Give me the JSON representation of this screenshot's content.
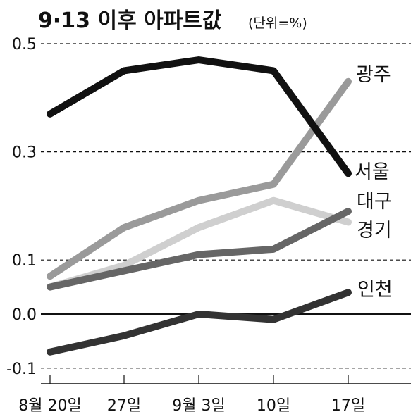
{
  "title": "9·13 이후 아파트값",
  "unit": "(단위=%)",
  "chart_data": {
    "type": "line",
    "title": "9·13 이후 아파트값",
    "unit": "(단위=%)",
    "x": [
      "8월 20일",
      "27일",
      "9월 3일",
      "10일",
      "17일"
    ],
    "ylim": [
      -0.13,
      0.5
    ],
    "yticks": [
      0.5,
      0.3,
      0.1,
      0.0,
      -0.1
    ],
    "ytick_labels": [
      "0.5",
      "0.3",
      "0.1",
      "0.0",
      "-0.1"
    ],
    "grid": "dashed horizontal",
    "series": [
      {
        "name": "서울",
        "values": [
          0.37,
          0.45,
          0.47,
          0.45,
          0.26
        ],
        "color": "#111111"
      },
      {
        "name": "광주",
        "values": [
          0.07,
          0.16,
          0.21,
          0.24,
          0.43
        ],
        "color": "#9a9a9a"
      },
      {
        "name": "대구",
        "values": [
          0.05,
          0.08,
          0.11,
          0.12,
          0.19
        ],
        "color": "#666666"
      },
      {
        "name": "경기",
        "values": [
          0.05,
          0.09,
          0.16,
          0.21,
          0.17
        ],
        "color": "#cfcfcf"
      },
      {
        "name": "인천",
        "values": [
          -0.07,
          -0.04,
          0.0,
          -0.01,
          0.04
        ],
        "color": "#333333"
      }
    ]
  }
}
